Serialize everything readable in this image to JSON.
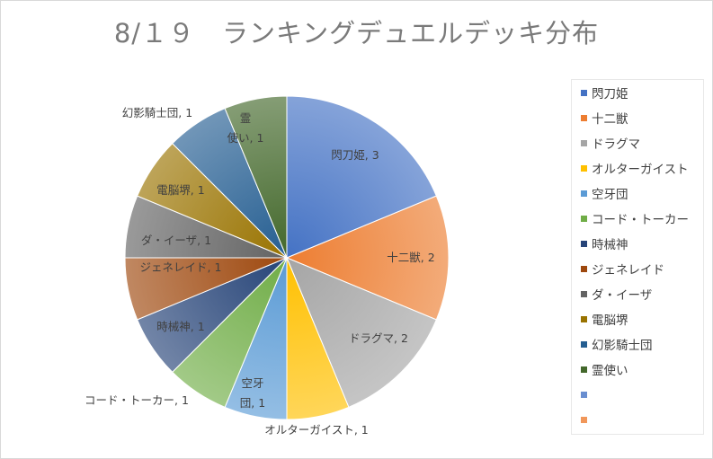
{
  "chart_data": {
    "type": "pie",
    "title": "8/１９　ランキングデュエルデッキ分布",
    "legend_position": "right",
    "slices": [
      {
        "label": "閃刀姫",
        "value": 3,
        "color": "#4472c4",
        "data_label": "閃刀姫, 3"
      },
      {
        "label": "十二獣",
        "value": 2,
        "color": "#ed7d31",
        "data_label": "十二獣, 2"
      },
      {
        "label": "ドラグマ",
        "value": 2,
        "color": "#a5a5a5",
        "data_label": "ドラグマ, 2"
      },
      {
        "label": "オルターガイスト",
        "value": 1,
        "color": "#ffc000",
        "data_label": "オルターガイスト, 1"
      },
      {
        "label": "空牙団",
        "value": 1,
        "color": "#5b9bd5",
        "data_label": "空牙団, 1"
      },
      {
        "label": "コード・トーカー",
        "value": 1,
        "color": "#70ad47",
        "data_label": "コード・トーカー, 1"
      },
      {
        "label": "時械神",
        "value": 1,
        "color": "#264478",
        "data_label": "時械神, 1"
      },
      {
        "label": "ジェネレイド",
        "value": 1,
        "color": "#9e480e",
        "data_label": "ジェネレイド, 1"
      },
      {
        "label": "ダ・イーザ",
        "value": 1,
        "color": "#636363",
        "data_label": "ダ・イーザ, 1"
      },
      {
        "label": "電脳堺",
        "value": 1,
        "color": "#997300",
        "data_label": "電脳堺, 1"
      },
      {
        "label": "幻影騎士団",
        "value": 1,
        "color": "#255e91",
        "data_label": "幻影騎士団, 1"
      },
      {
        "label": "霊使い",
        "value": 1,
        "color": "#43682b",
        "data_label": "霊使い, 1"
      }
    ],
    "extra_legend_entries": [
      {
        "label": "",
        "color": "#698ed0"
      },
      {
        "label": "",
        "color": "#f1975a"
      }
    ]
  }
}
